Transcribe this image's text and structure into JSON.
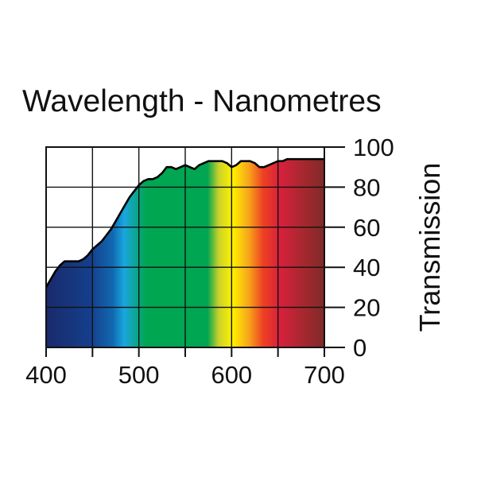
{
  "chart_data": {
    "type": "area",
    "title": "Wavelength - Nanometres",
    "xlabel": "",
    "ylabel": "Transmission",
    "xlim": [
      400,
      700
    ],
    "ylim": [
      0,
      100
    ],
    "x_ticks": [
      400,
      500,
      600,
      700
    ],
    "y_ticks": [
      0,
      20,
      40,
      60,
      80,
      100
    ],
    "grid": true,
    "y_axis_side": "right",
    "background": "visible-spectrum gradient",
    "spectrum_colors": [
      "#1a2a6b",
      "#143f8c",
      "#1269b0",
      "#19a6df",
      "#00a651",
      "#00a651",
      "#c9d12a",
      "#fff200",
      "#f7a21b",
      "#ee4023",
      "#d8203c",
      "#a8282f",
      "#7f2a2a"
    ],
    "series": [
      {
        "x": [
          400,
          405,
          410,
          415,
          420,
          425,
          430,
          435,
          440,
          445,
          450,
          455,
          460,
          465,
          470,
          475,
          480,
          485,
          490,
          495,
          500,
          505,
          510,
          515,
          520,
          525,
          530,
          535,
          540,
          545,
          550,
          555,
          560,
          565,
          570,
          575,
          580,
          585,
          590,
          595,
          600,
          605,
          610,
          615,
          620,
          625,
          630,
          635,
          640,
          645,
          650,
          655,
          660,
          665,
          670,
          675,
          680,
          685,
          690,
          695,
          700
        ],
        "values": [
          30,
          34,
          38,
          41,
          43,
          43,
          43,
          43,
          44,
          46,
          49,
          51,
          53,
          56,
          59,
          63,
          67,
          71,
          75,
          78,
          81,
          83,
          84,
          84,
          85,
          87,
          90,
          90,
          89,
          90,
          91,
          90,
          89,
          91,
          92,
          93,
          93,
          93,
          93,
          92,
          90,
          91,
          93,
          93,
          93,
          92,
          90,
          90,
          91,
          92,
          93,
          93,
          94,
          94,
          94,
          94,
          94,
          94,
          94,
          94,
          94
        ]
      }
    ]
  }
}
